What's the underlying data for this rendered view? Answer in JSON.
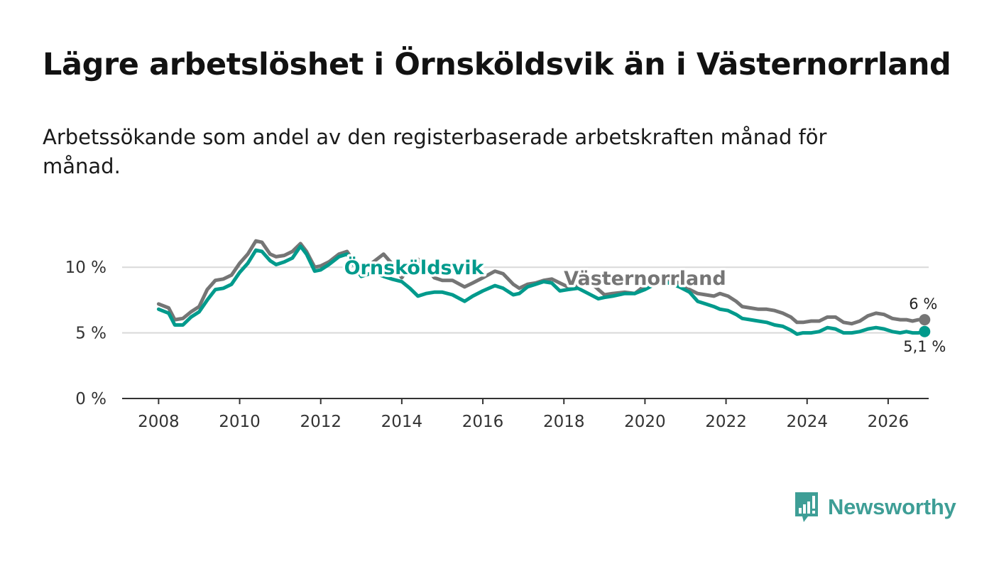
{
  "title": "Lägre arbetslöshet i Örnsköldsvik än i Västernorrland",
  "subtitle": "Arbetssökande som andel av den registerbaserade arbetskraften månad för månad.",
  "brand": {
    "name": "Newsworthy",
    "color": "#3e9e96"
  },
  "chart_data": {
    "type": "line",
    "title": "Lägre arbetslöshet i Örnsköldsvik än i Västernorrland",
    "subtitle": "Arbetssökande som andel av den registerbaserade arbetskraften månad för månad.",
    "xlabel": "",
    "ylabel": "",
    "xlim": [
      2007.1,
      2027.0
    ],
    "ylim": [
      0,
      12.5
    ],
    "x_ticks": [
      2008,
      2010,
      2012,
      2014,
      2016,
      2018,
      2020,
      2022,
      2024,
      2026
    ],
    "x_tick_labels": [
      "2008",
      "2010",
      "2012",
      "2014",
      "2016",
      "2018",
      "2020",
      "2022",
      "2024",
      "2026"
    ],
    "y_ticks": [
      0,
      5,
      10
    ],
    "y_tick_labels": [
      "0 %",
      "5 %",
      "10 %"
    ],
    "grid": "horizontal",
    "series": [
      {
        "name": "Västernorrland",
        "color": "#757575",
        "end_label": "6 %",
        "points": [
          [
            2008.0,
            7.2
          ],
          [
            2008.25,
            6.9
          ],
          [
            2008.4,
            6.0
          ],
          [
            2008.6,
            6.1
          ],
          [
            2008.8,
            6.6
          ],
          [
            2009.0,
            7.0
          ],
          [
            2009.2,
            8.3
          ],
          [
            2009.4,
            9.0
          ],
          [
            2009.6,
            9.1
          ],
          [
            2009.8,
            9.4
          ],
          [
            2010.0,
            10.3
          ],
          [
            2010.2,
            11.0
          ],
          [
            2010.4,
            12.0
          ],
          [
            2010.55,
            11.9
          ],
          [
            2010.75,
            11.0
          ],
          [
            2010.9,
            10.8
          ],
          [
            2011.1,
            10.9
          ],
          [
            2011.3,
            11.2
          ],
          [
            2011.5,
            11.8
          ],
          [
            2011.65,
            11.2
          ],
          [
            2011.85,
            10.0
          ],
          [
            2012.0,
            10.1
          ],
          [
            2012.2,
            10.4
          ],
          [
            2012.45,
            11.0
          ],
          [
            2012.65,
            11.2
          ],
          [
            2012.85,
            10.3
          ],
          [
            2013.0,
            9.7
          ],
          [
            2013.3,
            10.4
          ],
          [
            2013.55,
            11.0
          ],
          [
            2013.75,
            10.3
          ],
          [
            2014.0,
            9.2
          ],
          [
            2014.2,
            10.1
          ],
          [
            2014.4,
            10.6
          ],
          [
            2014.6,
            10.0
          ],
          [
            2014.8,
            9.2
          ],
          [
            2015.0,
            9.0
          ],
          [
            2015.25,
            9.0
          ],
          [
            2015.55,
            8.5
          ],
          [
            2015.75,
            8.8
          ],
          [
            2016.0,
            9.2
          ],
          [
            2016.3,
            9.7
          ],
          [
            2016.5,
            9.5
          ],
          [
            2016.75,
            8.7
          ],
          [
            2016.9,
            8.4
          ],
          [
            2017.1,
            8.7
          ],
          [
            2017.3,
            8.8
          ],
          [
            2017.5,
            9.0
          ],
          [
            2017.7,
            9.1
          ],
          [
            2017.9,
            8.8
          ],
          [
            2018.1,
            8.5
          ],
          [
            2018.35,
            8.6
          ],
          [
            2018.6,
            9.0
          ],
          [
            2018.85,
            8.3
          ],
          [
            2019.0,
            7.9
          ],
          [
            2019.2,
            8.0
          ],
          [
            2019.5,
            8.1
          ],
          [
            2019.75,
            8.0
          ],
          [
            2020.0,
            8.6
          ],
          [
            2020.3,
            8.9
          ],
          [
            2020.6,
            9.0
          ],
          [
            2020.85,
            8.8
          ],
          [
            2021.1,
            8.3
          ],
          [
            2021.3,
            8.0
          ],
          [
            2021.5,
            7.9
          ],
          [
            2021.7,
            7.8
          ],
          [
            2021.85,
            8.0
          ],
          [
            2022.05,
            7.8
          ],
          [
            2022.25,
            7.4
          ],
          [
            2022.4,
            7.0
          ],
          [
            2022.6,
            6.9
          ],
          [
            2022.8,
            6.8
          ],
          [
            2023.0,
            6.8
          ],
          [
            2023.2,
            6.7
          ],
          [
            2023.4,
            6.5
          ],
          [
            2023.6,
            6.2
          ],
          [
            2023.75,
            5.8
          ],
          [
            2023.9,
            5.8
          ],
          [
            2024.1,
            5.9
          ],
          [
            2024.3,
            5.9
          ],
          [
            2024.5,
            6.2
          ],
          [
            2024.7,
            6.2
          ],
          [
            2024.9,
            5.8
          ],
          [
            2025.1,
            5.7
          ],
          [
            2025.3,
            5.9
          ],
          [
            2025.5,
            6.3
          ],
          [
            2025.7,
            6.5
          ],
          [
            2025.9,
            6.4
          ],
          [
            2026.1,
            6.1
          ],
          [
            2026.3,
            6.0
          ],
          [
            2026.45,
            6.0
          ],
          [
            2026.6,
            5.9
          ],
          [
            2026.75,
            6.0
          ],
          [
            2026.9,
            6.0
          ]
        ]
      },
      {
        "name": "Örnsköldsvik",
        "color": "#009a8c",
        "end_label": "5,1 %",
        "points": [
          [
            2008.0,
            6.8
          ],
          [
            2008.25,
            6.5
          ],
          [
            2008.4,
            5.6
          ],
          [
            2008.6,
            5.6
          ],
          [
            2008.8,
            6.2
          ],
          [
            2009.0,
            6.6
          ],
          [
            2009.2,
            7.5
          ],
          [
            2009.4,
            8.3
          ],
          [
            2009.6,
            8.4
          ],
          [
            2009.8,
            8.7
          ],
          [
            2010.0,
            9.6
          ],
          [
            2010.2,
            10.3
          ],
          [
            2010.4,
            11.3
          ],
          [
            2010.55,
            11.2
          ],
          [
            2010.75,
            10.5
          ],
          [
            2010.9,
            10.2
          ],
          [
            2011.1,
            10.4
          ],
          [
            2011.3,
            10.7
          ],
          [
            2011.5,
            11.6
          ],
          [
            2011.65,
            11.0
          ],
          [
            2011.85,
            9.7
          ],
          [
            2012.0,
            9.8
          ],
          [
            2012.2,
            10.2
          ],
          [
            2012.45,
            10.8
          ],
          [
            2012.65,
            11.0
          ],
          [
            2012.85,
            10.0
          ],
          [
            2013.0,
            9.3
          ],
          [
            2013.3,
            9.6
          ],
          [
            2013.55,
            9.3
          ],
          [
            2013.75,
            9.1
          ],
          [
            2014.0,
            8.9
          ],
          [
            2014.2,
            8.4
          ],
          [
            2014.4,
            7.8
          ],
          [
            2014.6,
            8.0
          ],
          [
            2014.8,
            8.1
          ],
          [
            2015.0,
            8.1
          ],
          [
            2015.25,
            7.9
          ],
          [
            2015.55,
            7.4
          ],
          [
            2015.75,
            7.8
          ],
          [
            2016.0,
            8.2
          ],
          [
            2016.3,
            8.6
          ],
          [
            2016.5,
            8.4
          ],
          [
            2016.75,
            7.9
          ],
          [
            2016.9,
            8.0
          ],
          [
            2017.1,
            8.5
          ],
          [
            2017.3,
            8.7
          ],
          [
            2017.5,
            8.9
          ],
          [
            2017.7,
            8.8
          ],
          [
            2017.9,
            8.2
          ],
          [
            2018.1,
            8.3
          ],
          [
            2018.35,
            8.4
          ],
          [
            2018.6,
            8.0
          ],
          [
            2018.85,
            7.6
          ],
          [
            2019.0,
            7.7
          ],
          [
            2019.2,
            7.8
          ],
          [
            2019.5,
            8.0
          ],
          [
            2019.75,
            8.0
          ],
          [
            2020.0,
            8.3
          ],
          [
            2020.3,
            8.8
          ],
          [
            2020.6,
            8.8
          ],
          [
            2020.85,
            8.5
          ],
          [
            2021.1,
            8.1
          ],
          [
            2021.3,
            7.4
          ],
          [
            2021.5,
            7.2
          ],
          [
            2021.7,
            7.0
          ],
          [
            2021.85,
            6.8
          ],
          [
            2022.05,
            6.7
          ],
          [
            2022.25,
            6.4
          ],
          [
            2022.4,
            6.1
          ],
          [
            2022.6,
            6.0
          ],
          [
            2022.8,
            5.9
          ],
          [
            2023.0,
            5.8
          ],
          [
            2023.2,
            5.6
          ],
          [
            2023.4,
            5.5
          ],
          [
            2023.6,
            5.2
          ],
          [
            2023.75,
            4.9
          ],
          [
            2023.9,
            5.0
          ],
          [
            2024.1,
            5.0
          ],
          [
            2024.3,
            5.1
          ],
          [
            2024.5,
            5.4
          ],
          [
            2024.7,
            5.3
          ],
          [
            2024.9,
            5.0
          ],
          [
            2025.1,
            5.0
          ],
          [
            2025.3,
            5.1
          ],
          [
            2025.5,
            5.3
          ],
          [
            2025.7,
            5.4
          ],
          [
            2025.9,
            5.3
          ],
          [
            2026.1,
            5.1
          ],
          [
            2026.3,
            5.0
          ],
          [
            2026.45,
            5.1
          ],
          [
            2026.6,
            5.0
          ],
          [
            2026.75,
            5.0
          ],
          [
            2026.9,
            5.1
          ]
        ]
      }
    ],
    "annotations": [
      {
        "text": "Örnsköldsvik",
        "x": 2014.3,
        "y": 10.0,
        "series": "Örnsköldsvik"
      },
      {
        "text": "Västernorrland",
        "x": 2020.0,
        "y": 9.2,
        "series": "Västernorrland"
      }
    ]
  }
}
